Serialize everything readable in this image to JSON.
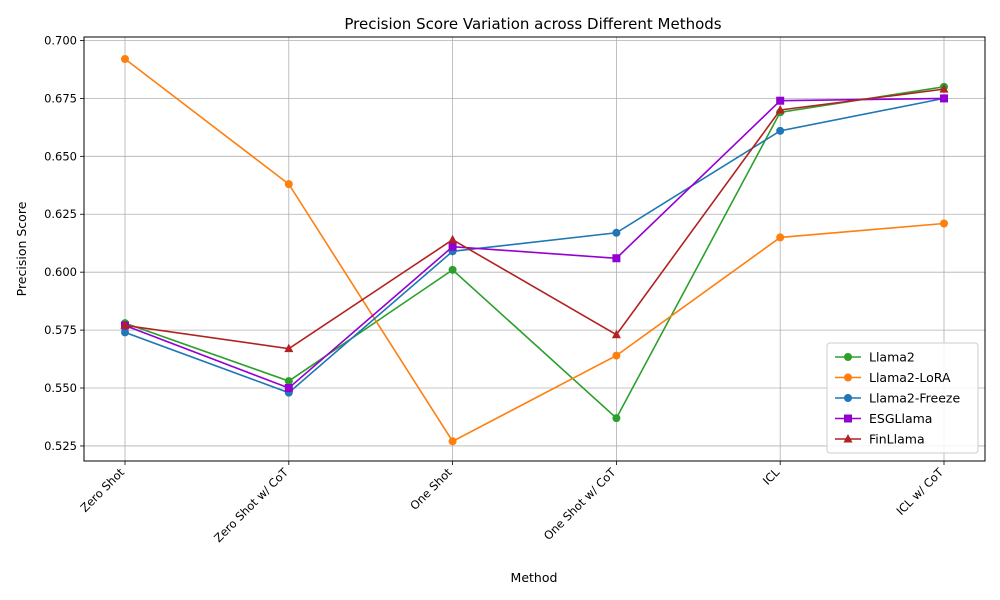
{
  "chart_data": {
    "type": "line",
    "title": "Precision Score Variation across Different Methods",
    "xlabel": "Method",
    "ylabel": "Precision Score",
    "categories": [
      "Zero Shot",
      "Zero Shot w/ CoT",
      "One Shot",
      "One Shot w/ CoT",
      "ICL",
      "ICL w/ CoT"
    ],
    "ylim": [
      0.5185,
      0.7015
    ],
    "yticks": [
      0.525,
      0.55,
      0.575,
      0.6,
      0.625,
      0.65,
      0.675,
      0.7
    ],
    "ytick_labels": [
      "0.525",
      "0.550",
      "0.575",
      "0.600",
      "0.625",
      "0.650",
      "0.675",
      "0.700"
    ],
    "grid": true,
    "legend_position": "lower right",
    "series": [
      {
        "name": "Llama2",
        "color": "#2ca02c",
        "marker": "circle",
        "values": [
          0.578,
          0.553,
          0.601,
          0.537,
          0.669,
          0.68
        ]
      },
      {
        "name": "Llama2-LoRA",
        "color": "#ff7f0e",
        "marker": "circle",
        "values": [
          0.692,
          0.638,
          0.527,
          0.564,
          0.615,
          0.621
        ]
      },
      {
        "name": "Llama2-Freeze",
        "color": "#1f77b4",
        "marker": "circle",
        "values": [
          0.574,
          0.548,
          0.609,
          0.617,
          0.661,
          0.675
        ]
      },
      {
        "name": "ESGLlama",
        "color": "#9400d3",
        "marker": "square",
        "values": [
          0.577,
          0.55,
          0.611,
          0.606,
          0.674,
          0.675
        ]
      },
      {
        "name": "FinLlama",
        "color": "#b22222",
        "marker": "triangle",
        "values": [
          0.577,
          0.567,
          0.614,
          0.573,
          0.67,
          0.679
        ]
      }
    ]
  }
}
